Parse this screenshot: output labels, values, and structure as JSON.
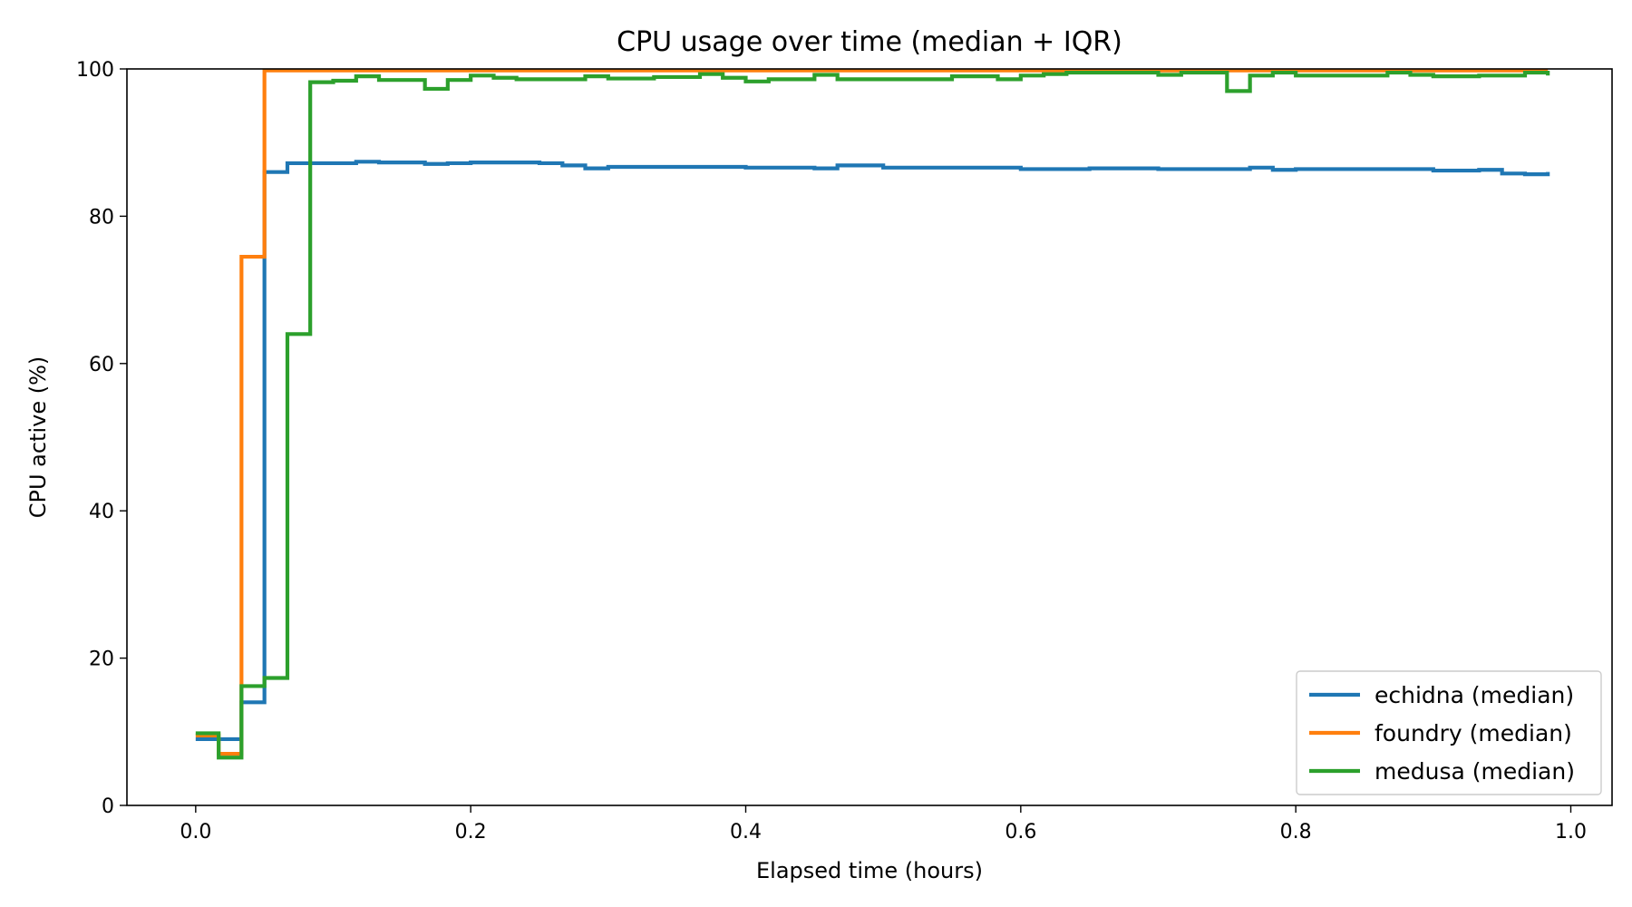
{
  "chart_data": {
    "type": "line",
    "step": true,
    "title": "CPU usage over time (median + IQR)",
    "xlabel": "Elapsed time (hours)",
    "ylabel": "CPU active (%)",
    "xlim": [
      -0.05,
      1.03
    ],
    "ylim": [
      0,
      100
    ],
    "xticks": [
      0.0,
      0.2,
      0.4,
      0.6,
      0.8,
      1.0
    ],
    "xtick_labels": [
      "0.0",
      "0.2",
      "0.4",
      "0.6",
      "0.8",
      "1.0"
    ],
    "yticks": [
      0,
      20,
      40,
      60,
      80,
      100
    ],
    "ytick_labels": [
      "0",
      "20",
      "40",
      "60",
      "80",
      "100"
    ],
    "grid": false,
    "legend_position": "lower-right",
    "series": [
      {
        "name": "echidna (median)",
        "color": "#1f77b4",
        "x": [
          0,
          0.0167,
          0.0333,
          0.05,
          0.0667,
          0.0833,
          0.1,
          0.1167,
          0.1333,
          0.15,
          0.1667,
          0.1833,
          0.2,
          0.25,
          0.2667,
          0.2833,
          0.3,
          0.35,
          0.4,
          0.45,
          0.4667,
          0.5,
          0.55,
          0.6,
          0.65,
          0.7,
          0.75,
          0.7667,
          0.7833,
          0.8,
          0.85,
          0.9,
          0.9333,
          0.95,
          0.9667,
          0.9833
        ],
        "y": [
          9,
          9,
          14,
          86,
          87.2,
          87.2,
          87.2,
          87.4,
          87.3,
          87.3,
          87.1,
          87.2,
          87.3,
          87.2,
          86.9,
          86.5,
          86.7,
          86.7,
          86.6,
          86.5,
          86.9,
          86.6,
          86.6,
          86.4,
          86.5,
          86.4,
          86.4,
          86.6,
          86.3,
          86.4,
          86.4,
          86.2,
          86.3,
          85.8,
          85.7,
          86.0
        ]
      },
      {
        "name": "foundry (median)",
        "color": "#ff7f0e",
        "x": [
          0,
          0.0167,
          0.0333,
          0.05,
          0.1,
          0.2,
          0.4,
          0.6,
          0.8,
          0.9833
        ],
        "y": [
          9.5,
          7,
          74.5,
          99.8,
          99.8,
          99.8,
          99.8,
          99.8,
          99.8,
          99.8
        ]
      },
      {
        "name": "medusa (median)",
        "color": "#2ca02c",
        "x": [
          0,
          0.0167,
          0.0333,
          0.05,
          0.0667,
          0.0833,
          0.1,
          0.1167,
          0.1333,
          0.1667,
          0.1833,
          0.2,
          0.2167,
          0.2333,
          0.2833,
          0.3,
          0.3333,
          0.3667,
          0.3833,
          0.4,
          0.4167,
          0.45,
          0.4667,
          0.55,
          0.5833,
          0.6,
          0.6167,
          0.6333,
          0.7,
          0.7167,
          0.75,
          0.7667,
          0.7833,
          0.8,
          0.8667,
          0.8833,
          0.9,
          0.9333,
          0.9667,
          0.9833
        ],
        "y": [
          9.8,
          6.5,
          16.2,
          17.3,
          64,
          98.2,
          98.4,
          99,
          98.5,
          97.3,
          98.5,
          99.1,
          98.8,
          98.6,
          99,
          98.7,
          98.9,
          99.3,
          98.8,
          98.3,
          98.6,
          99.2,
          98.6,
          99.0,
          98.6,
          99.1,
          99.3,
          99.5,
          99.2,
          99.5,
          97,
          99.1,
          99.5,
          99.1,
          99.5,
          99.2,
          99.0,
          99.1,
          99.5,
          99.1
        ]
      }
    ]
  }
}
